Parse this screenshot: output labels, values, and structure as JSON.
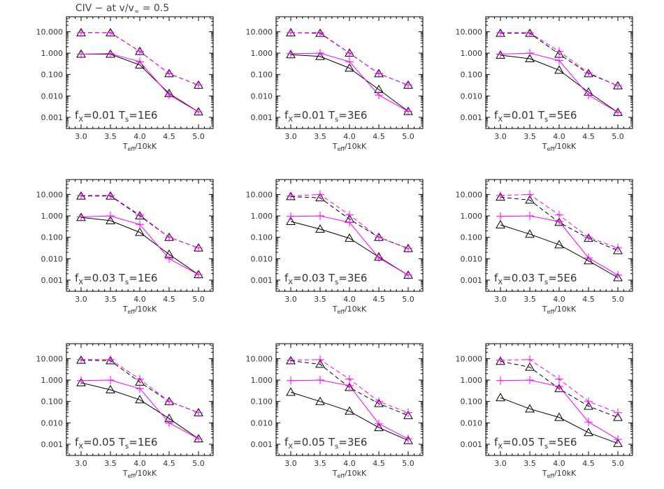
{
  "figure": {
    "title_prefix": "CIV − at v/v",
    "title_sub": "∞",
    "title_suffix": " = 0.5"
  },
  "colors": {
    "model_a": "#000000",
    "model_b": "#ff00ff"
  },
  "chart_data": {
    "type": "line",
    "yscale": "log",
    "ylim": [
      0.0003,
      50
    ],
    "xlim": [
      2.75,
      5.25
    ],
    "x": [
      3.0,
      3.5,
      4.0,
      4.5,
      5.0
    ],
    "xtick_labels": [
      "3.0",
      "3.5",
      "4.0",
      "4.5",
      "5.0"
    ],
    "ytick_values": [
      0.001,
      0.01,
      0.1,
      1,
      10
    ],
    "ytick_labels": [
      "0.001",
      "0.010",
      "0.100",
      "1.000",
      "10.000"
    ],
    "xlabel_main": "T",
    "xlabel_sub": "eff",
    "xlabel_suffix": "/10kK",
    "panels": [
      {
        "fx": "0.01",
        "ts": "1E6",
        "black_solid": [
          0.9,
          0.9,
          0.28,
          0.013,
          0.0018
        ],
        "magenta_solid": [
          0.9,
          0.95,
          0.4,
          0.011,
          0.0018
        ],
        "black_dashed": [
          9,
          9,
          1.2,
          0.11,
          0.032
        ],
        "magenta_dashed": [
          9,
          9,
          1.2,
          0.11,
          0.032
        ]
      },
      {
        "fx": "0.01",
        "ts": "3E6",
        "black_solid": [
          0.85,
          0.7,
          0.2,
          0.02,
          0.0019
        ],
        "magenta_solid": [
          0.95,
          1.0,
          0.4,
          0.011,
          0.0019
        ],
        "black_dashed": [
          9,
          8.5,
          1.0,
          0.11,
          0.032
        ],
        "magenta_dashed": [
          9,
          9,
          1.0,
          0.11,
          0.032
        ]
      },
      {
        "fx": "0.01",
        "ts": "5E6",
        "black_solid": [
          0.8,
          0.55,
          0.16,
          0.015,
          0.0017
        ],
        "magenta_solid": [
          0.9,
          1.0,
          0.45,
          0.011,
          0.0017
        ],
        "black_dashed": [
          8.5,
          8.5,
          0.9,
          0.11,
          0.03
        ],
        "magenta_dashed": [
          9,
          9,
          1.2,
          0.12,
          0.03
        ]
      },
      {
        "fx": "0.03",
        "ts": "1E6",
        "black_solid": [
          0.85,
          0.6,
          0.17,
          0.016,
          0.0018
        ],
        "magenta_solid": [
          0.9,
          1.0,
          0.4,
          0.01,
          0.0018
        ],
        "black_dashed": [
          8.5,
          8.5,
          1.0,
          0.1,
          0.032
        ],
        "magenta_dashed": [
          9,
          9,
          1.1,
          0.1,
          0.032
        ]
      },
      {
        "fx": "0.03",
        "ts": "3E6",
        "black_solid": [
          0.55,
          0.24,
          0.09,
          0.012,
          0.0017
        ],
        "magenta_solid": [
          0.95,
          1.0,
          0.5,
          0.011,
          0.0017
        ],
        "black_dashed": [
          8,
          7,
          0.7,
          0.1,
          0.03
        ],
        "magenta_dashed": [
          8.5,
          10,
          1.1,
          0.1,
          0.03
        ]
      },
      {
        "fx": "0.03",
        "ts": "5E6",
        "black_solid": [
          0.38,
          0.14,
          0.045,
          0.008,
          0.0013
        ],
        "magenta_solid": [
          0.95,
          1.0,
          0.55,
          0.011,
          0.0017
        ],
        "black_dashed": [
          7.5,
          5.5,
          0.5,
          0.09,
          0.024
        ],
        "magenta_dashed": [
          9,
          10,
          1.1,
          0.1,
          0.032
        ]
      },
      {
        "fx": "0.05",
        "ts": "1E6",
        "black_solid": [
          0.75,
          0.35,
          0.12,
          0.016,
          0.0018
        ],
        "magenta_solid": [
          0.95,
          1.0,
          0.4,
          0.01,
          0.0018
        ],
        "black_dashed": [
          8.5,
          8,
          0.8,
          0.1,
          0.03
        ],
        "magenta_dashed": [
          9,
          9,
          1.1,
          0.1,
          0.03
        ]
      },
      {
        "fx": "0.05",
        "ts": "3E6",
        "black_solid": [
          0.27,
          0.1,
          0.035,
          0.006,
          0.0015
        ],
        "magenta_solid": [
          0.95,
          1.0,
          0.55,
          0.009,
          0.0018
        ],
        "black_dashed": [
          8,
          5.5,
          0.45,
          0.08,
          0.022
        ],
        "magenta_dashed": [
          8.5,
          9,
          1.1,
          0.1,
          0.03
        ]
      },
      {
        "fx": "0.05",
        "ts": "5E6",
        "black_solid": [
          0.15,
          0.045,
          0.018,
          0.0035,
          0.0011
        ],
        "magenta_solid": [
          0.95,
          1.0,
          0.5,
          0.011,
          0.0017
        ],
        "black_dashed": [
          7.5,
          4,
          0.4,
          0.06,
          0.018
        ],
        "magenta_dashed": [
          8.5,
          9,
          1.1,
          0.1,
          0.03
        ]
      }
    ]
  }
}
